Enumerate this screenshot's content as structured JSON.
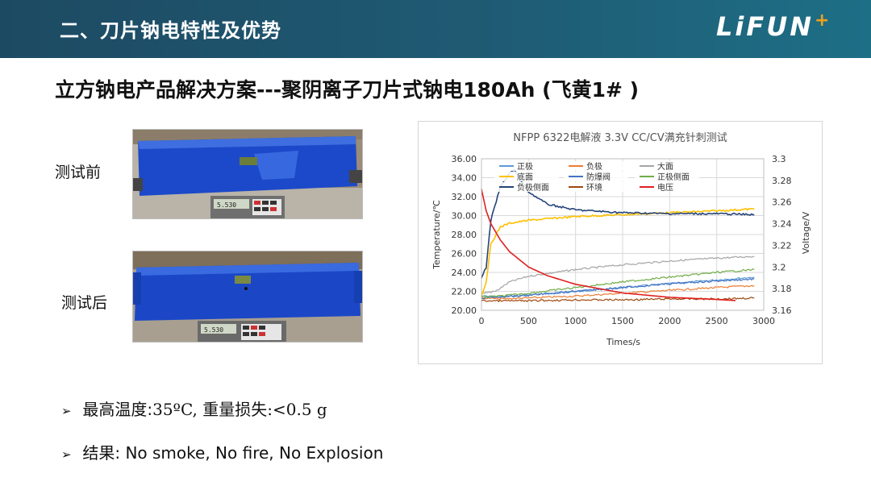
{
  "header": {
    "title": "二、刀片钠电特性及优势",
    "logo": "LiFUN",
    "logo_plus": "+"
  },
  "subtitle": "立方钠电产品解决方案---聚阴离子刀片式钠电180Ah (飞黄1# )",
  "photos": [
    {
      "label": "测试前",
      "scale_reading": "5.530"
    },
    {
      "label": "测试后",
      "scale_reading": "5.530"
    }
  ],
  "bullets": [
    {
      "arrow": "➢",
      "prefix": "最高温度:",
      "serif_text": "35ºC, 重量损失:<0.5 g"
    },
    {
      "arrow": "➢",
      "prefix": "结果: No smoke, No fire, No Explosion",
      "serif_text": ""
    }
  ],
  "chart_data": {
    "type": "line",
    "title": "NFPP 6322电解液 3.3V CC/CV满充针刺测试",
    "xlabel": "Times/s",
    "ylabel": "Temperature/℃",
    "y2label": "Voltage/V",
    "xlim": [
      0,
      3000
    ],
    "ylim": [
      20,
      36
    ],
    "y2lim": [
      3.16,
      3.3
    ],
    "x_ticks": [
      "0",
      "500",
      "1000",
      "1500",
      "2000",
      "2500",
      "3000"
    ],
    "y_ticks": [
      "20.00",
      "22.00",
      "24.00",
      "26.00",
      "28.00",
      "30.00",
      "32.00",
      "34.00",
      "36.00"
    ],
    "y2_ticks": [
      "3.16",
      "3.18",
      "3.2",
      "3.22",
      "3.24",
      "3.26",
      "3.28",
      "3.3"
    ],
    "legend_position": "top",
    "series": [
      {
        "name": "正极",
        "axis": "left",
        "color": "#5b9bd5",
        "x": [
          0,
          200,
          500,
          1000,
          1500,
          2000,
          2500,
          2900
        ],
        "values": [
          21.5,
          21.4,
          21.6,
          22.0,
          22.4,
          22.8,
          23.2,
          23.5
        ]
      },
      {
        "name": "负极",
        "axis": "left",
        "color": "#ed7d31",
        "x": [
          0,
          200,
          500,
          1000,
          1500,
          2000,
          2500,
          2900
        ],
        "values": [
          21.3,
          21.2,
          21.3,
          21.5,
          21.8,
          22.1,
          22.4,
          22.6
        ]
      },
      {
        "name": "大面",
        "axis": "left",
        "color": "#a5a5a5",
        "x": [
          0,
          150,
          300,
          500,
          1000,
          1500,
          2000,
          2500,
          2900
        ],
        "values": [
          21.8,
          22.0,
          23.0,
          23.6,
          24.3,
          24.8,
          25.2,
          25.5,
          25.7
        ]
      },
      {
        "name": "底面",
        "axis": "left",
        "color": "#ffc000",
        "x": [
          0,
          50,
          100,
          200,
          300,
          500,
          1000,
          1500,
          2000,
          2500,
          2900
        ],
        "values": [
          21.5,
          23.0,
          27.0,
          28.8,
          29.2,
          29.5,
          29.9,
          30.1,
          30.3,
          30.5,
          30.7
        ]
      },
      {
        "name": "防爆阀",
        "axis": "left",
        "color": "#4472c4",
        "x": [
          0,
          200,
          500,
          1000,
          1500,
          2000,
          2500,
          2900
        ],
        "values": [
          21.3,
          21.4,
          21.6,
          22.0,
          22.4,
          22.8,
          23.1,
          23.3
        ]
      },
      {
        "name": "正极侧面",
        "axis": "left",
        "color": "#70ad47",
        "x": [
          0,
          200,
          500,
          1000,
          1500,
          2000,
          2500,
          2900
        ],
        "values": [
          21.4,
          21.5,
          21.8,
          22.4,
          23.0,
          23.5,
          24.0,
          24.3
        ]
      },
      {
        "name": "负极侧面",
        "axis": "left",
        "color": "#264478",
        "x": [
          0,
          50,
          100,
          200,
          300,
          350,
          400,
          500,
          700,
          1000,
          1500,
          2000,
          2500,
          2900
        ],
        "values": [
          23.5,
          24.5,
          29.5,
          33.0,
          34.5,
          34.8,
          34.0,
          32.5,
          31.2,
          30.6,
          30.3,
          30.2,
          30.2,
          30.1
        ]
      },
      {
        "name": "环境",
        "axis": "left",
        "color": "#9e480e",
        "x": [
          0,
          500,
          1000,
          1500,
          2000,
          2500,
          2900
        ],
        "values": [
          21.0,
          21.0,
          21.1,
          21.1,
          21.2,
          21.2,
          21.3
        ]
      },
      {
        "name": "电压",
        "axis": "right",
        "color": "#e02020",
        "x": [
          0,
          50,
          100,
          200,
          300,
          500,
          700,
          1000,
          1500,
          2000,
          2500,
          2700
        ],
        "values": [
          3.272,
          3.252,
          3.24,
          3.225,
          3.214,
          3.2,
          3.192,
          3.184,
          3.176,
          3.172,
          3.17,
          3.169
        ]
      }
    ]
  }
}
